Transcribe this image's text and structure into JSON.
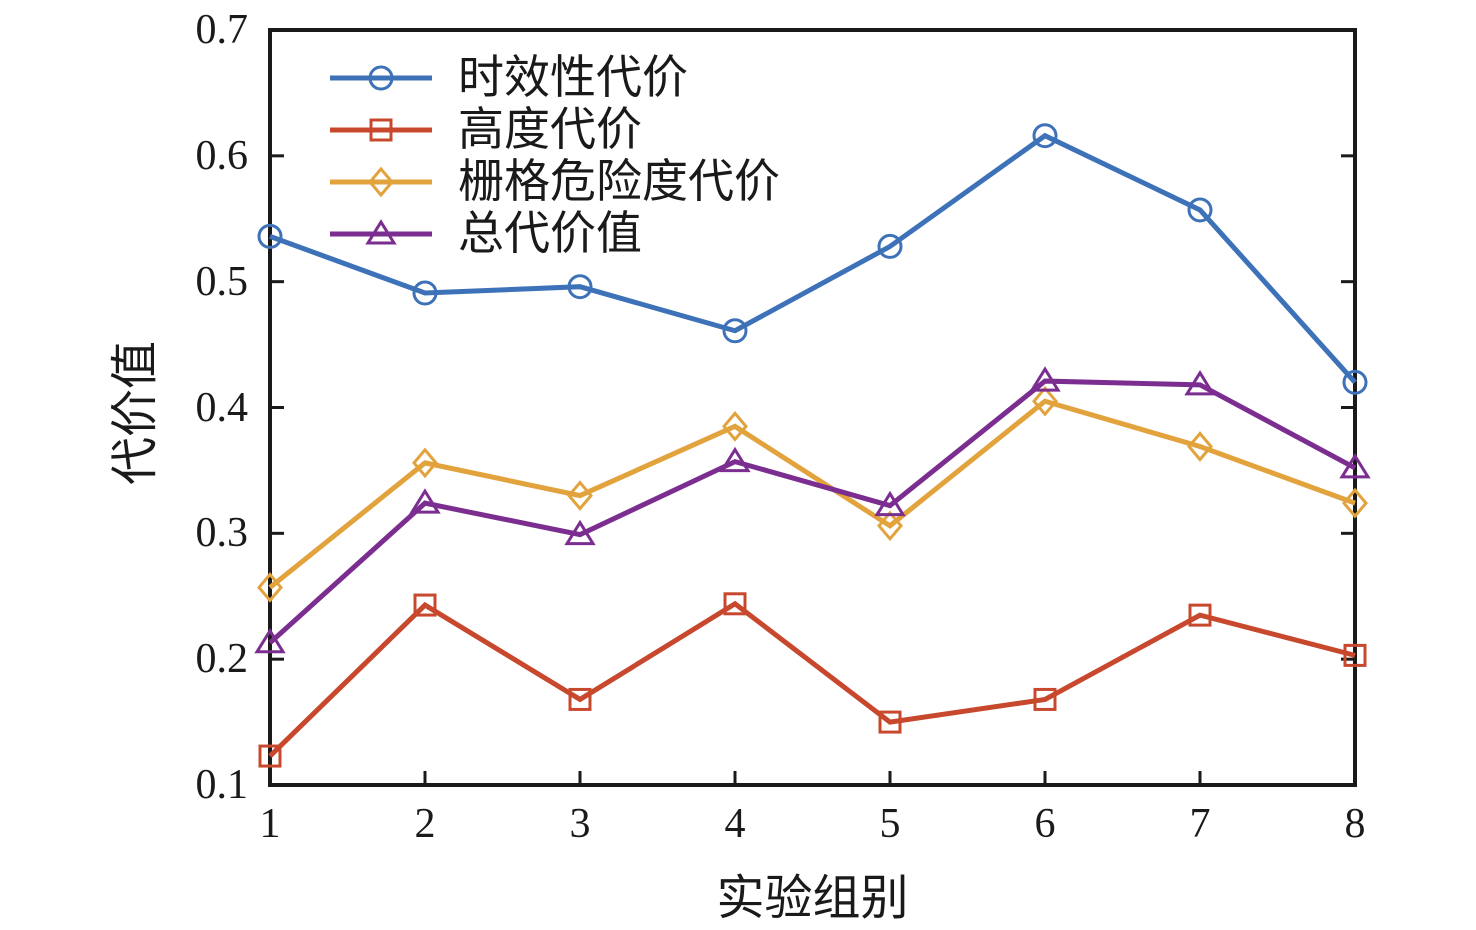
{
  "figure": {
    "background": "#ffffff",
    "axis_color": "#1a1a1a"
  },
  "chart_data": {
    "type": "line",
    "x": [
      1,
      2,
      3,
      4,
      5,
      6,
      7,
      8
    ],
    "x_ticks": [
      "1",
      "2",
      "3",
      "4",
      "5",
      "6",
      "7",
      "8"
    ],
    "y_ticks": [
      "0.7",
      "0.6",
      "0.5",
      "0.4",
      "0.3",
      "0.2",
      "0.1"
    ],
    "y_tick_values": [
      0.7,
      0.6,
      0.5,
      0.4,
      0.3,
      0.2,
      0.1
    ],
    "xlim": [
      1,
      8
    ],
    "ylim": [
      0.1,
      0.7
    ],
    "grid": false,
    "legend_position": "top-left-inside",
    "xlabel": "实验组别",
    "ylabel": "代价值",
    "series": [
      {
        "name": "时效性代价",
        "marker": "circle",
        "color": "#3D72B8",
        "values": [
          0.536,
          0.491,
          0.496,
          0.461,
          0.528,
          0.616,
          0.557,
          0.42
        ]
      },
      {
        "name": "高度代价",
        "marker": "square",
        "color": "#C8482E",
        "values": [
          0.123,
          0.243,
          0.168,
          0.244,
          0.15,
          0.168,
          0.235,
          0.203
        ]
      },
      {
        "name": "栅格危险度代价",
        "marker": "diamond",
        "color": "#E2A33D",
        "values": [
          0.257,
          0.356,
          0.33,
          0.385,
          0.306,
          0.405,
          0.369,
          0.324
        ]
      },
      {
        "name": "总代价值",
        "marker": "triangle",
        "color": "#7B2E90",
        "values": [
          0.213,
          0.324,
          0.299,
          0.357,
          0.322,
          0.421,
          0.418,
          0.352
        ]
      }
    ]
  }
}
